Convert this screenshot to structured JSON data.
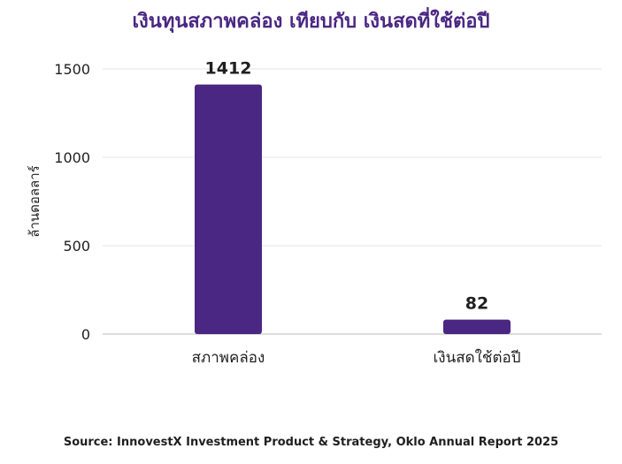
{
  "chart_data": {
    "type": "bar",
    "title": "เงินทุนสภาพคล่อง เทียบกับ เงินสดที่ใช้ต่อปี",
    "categories": [
      "สภาพคล่อง",
      "เงินสดใช้ต่อปี"
    ],
    "values": [
      1412,
      82
    ],
    "data_labels": [
      "1412",
      "82"
    ],
    "ylabel": "ล้านดอลลาร์",
    "xlabel": "",
    "ylim": [
      0,
      1500
    ],
    "yticks": [
      0,
      500,
      1000,
      1500
    ],
    "grid": true,
    "legend": "none",
    "source": "Source: InnovestX Investment Product & Strategy, Oklo Annual Report 2025"
  },
  "colors": {
    "bar": "#4a2783",
    "title": "#4a2783",
    "grid": "#e6e6e6",
    "axis": "#bdbdbd",
    "text": "#1f1f1f"
  }
}
